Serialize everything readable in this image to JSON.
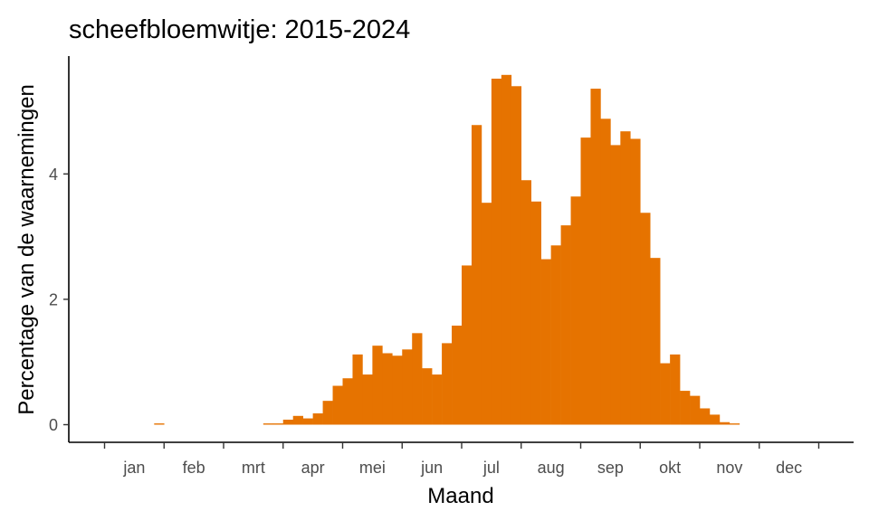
{
  "chart_data": {
    "type": "bar",
    "title": "scheefbloemwitje: 2015-2024",
    "xlabel": "Maand",
    "ylabel": "Percentage van de waarnemingen",
    "x_tick_labels": [
      "jan",
      "feb",
      "mrt",
      "apr",
      "mei",
      "jun",
      "jul",
      "aug",
      "sep",
      "okt",
      "nov",
      "dec"
    ],
    "y_ticks": [
      0,
      2,
      4
    ],
    "ylim": [
      0,
      5.7
    ],
    "bin_count": 72,
    "legend": "none",
    "grid": false,
    "bar_color": "#E67300",
    "values": [
      0,
      0,
      0,
      0,
      0,
      0.02,
      0,
      0,
      0,
      0,
      0,
      0,
      0,
      0,
      0,
      0,
      0.02,
      0.02,
      0.08,
      0.14,
      0.1,
      0.18,
      0.38,
      0.62,
      0.74,
      1.12,
      0.8,
      1.26,
      1.14,
      1.1,
      1.2,
      1.46,
      0.9,
      0.8,
      1.3,
      1.58,
      2.54,
      4.78,
      3.54,
      5.52,
      5.58,
      5.4,
      3.9,
      3.56,
      2.64,
      2.86,
      3.18,
      3.64,
      4.58,
      5.36,
      4.88,
      4.46,
      4.68,
      4.56,
      3.38,
      2.66,
      0.98,
      1.12,
      0.54,
      0.46,
      0.26,
      0.16,
      0.04,
      0.02,
      0,
      0,
      0,
      0,
      0,
      0,
      0,
      0
    ]
  }
}
